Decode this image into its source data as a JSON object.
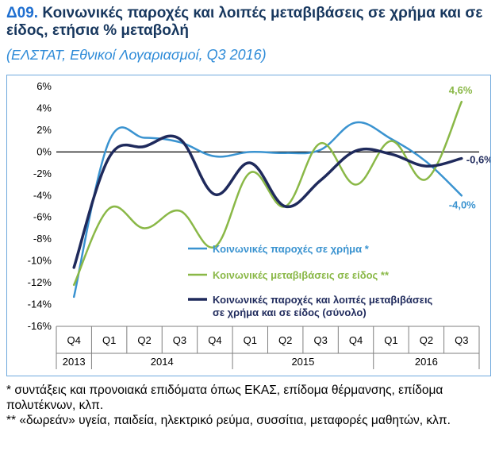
{
  "header": {
    "code": "Δ09.",
    "title": "Κοινωνικές παροχές και λοιπές μεταβιβάσεις σε χρήμα και σε είδος, ετήσια % μεταβολή",
    "subtitle": "(ΕΛΣΤΑΤ, Εθνικοί Λογαριασμοί, Q3 2016)"
  },
  "chart_data": {
    "type": "line",
    "title": "Κοινωνικές παροχές και λοιπές μεταβιβάσεις σε χρήμα και σε είδος, ετήσια % μεταβολή",
    "categories": [
      "Q4",
      "Q1",
      "Q2",
      "Q3",
      "Q4",
      "Q1",
      "Q2",
      "Q3",
      "Q4",
      "Q1",
      "Q2",
      "Q3"
    ],
    "years": [
      {
        "label": "2013",
        "from": 0,
        "to": 0
      },
      {
        "label": "2014",
        "from": 1,
        "to": 4
      },
      {
        "label": "2015",
        "from": 5,
        "to": 8
      },
      {
        "label": "2016",
        "from": 9,
        "to": 11
      }
    ],
    "yticks": [
      "6%",
      "4%",
      "2%",
      "0%",
      "-2%",
      "-4%",
      "-6%",
      "-8%",
      "-10%",
      "-12%",
      "-14%",
      "-16%"
    ],
    "ylim": [
      -16,
      6
    ],
    "series": [
      {
        "name": "Κοινωνικές παροχές σε χρήμα *",
        "color": "#3a93d0",
        "values": [
          -13.3,
          1.0,
          1.3,
          0.9,
          -0.4,
          0.0,
          -0.1,
          0.2,
          2.7,
          1.2,
          -0.9,
          -4.0
        ],
        "end_label": "-4,0%"
      },
      {
        "name": "Κοινωνικές μεταβιβάσεις σε είδος **",
        "color": "#8ab847",
        "values": [
          -12.2,
          -5.2,
          -7.0,
          -5.4,
          -8.7,
          -1.9,
          -5.0,
          0.8,
          -3.0,
          1.0,
          -2.5,
          4.6
        ],
        "end_label": "4,6%"
      },
      {
        "name": "Κοινωνικές παροχές και λοιπές μεταβιβάσεις σε χρήμα και σε είδος (σύνολο)",
        "color": "#1f2a5c",
        "values": [
          -10.6,
          -0.5,
          0.5,
          1.2,
          -3.9,
          -1.0,
          -5.0,
          -2.6,
          0.1,
          -0.2,
          -1.3,
          -0.6
        ],
        "end_label": "-0,6%"
      }
    ],
    "legend": {
      "position": "right",
      "items": [
        "Κοινωνικές παροχές σε χρήμα *",
        "Κοινωνικές μεταβιβάσεις σε είδος **",
        "Κοινωνικές παροχές και λοιπές μεταβιβάσεις",
        "σε χρήμα και σε είδος (σύνολο)"
      ]
    }
  },
  "notes": {
    "note1": "* συντάξεις και προνοιακά επιδόματα όπως ΕΚΑΣ, επίδομα θέρμανσης, επίδομα πολυτέκνων, κλπ.",
    "note2": "** «δωρεάν» υγεία, παιδεία, ηλεκτρικό ρεύμα, συσσίτια, μεταφορές μαθητών, κλπ."
  }
}
